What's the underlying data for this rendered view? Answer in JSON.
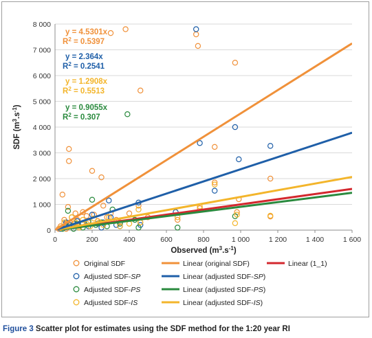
{
  "chart_data": {
    "type": "scatter",
    "xlabel": "Observed (m",
    "xlabel_sup": "3",
    "xlabel_mid": ".s",
    "xlabel_sup2": "-1",
    "xlabel_end": ")",
    "ylabel": "SDF (m",
    "ylabel_sup": "3",
    "ylabel_mid": ".s",
    "ylabel_sup2": "-1",
    "ylabel_end": ")",
    "xlim": [
      0,
      1600
    ],
    "ylim": [
      0,
      8000
    ],
    "x_ticks": [
      0,
      200,
      400,
      600,
      800,
      1000,
      1200,
      1400,
      1600
    ],
    "x_tick_labels": [
      "0",
      "200",
      "400",
      "600",
      "800",
      "1 000",
      "1 200",
      "1 400",
      "1 600"
    ],
    "y_ticks": [
      0,
      1000,
      2000,
      3000,
      4000,
      5000,
      6000,
      7000,
      8000
    ],
    "y_tick_labels": [
      "0",
      "1 000",
      "2 000",
      "3 000",
      "4 000",
      "5 000",
      "6 000",
      "7 000",
      "8 000"
    ],
    "grid": "horizontal",
    "series": [
      {
        "name": "Original SDF",
        "kind": "scatter",
        "color": "#f0913a",
        "points": [
          [
            20,
            50
          ],
          [
            30,
            150
          ],
          [
            40,
            1380
          ],
          [
            50,
            400
          ],
          [
            60,
            250
          ],
          [
            70,
            900
          ],
          [
            75,
            3150
          ],
          [
            75,
            2680
          ],
          [
            80,
            300
          ],
          [
            90,
            500
          ],
          [
            100,
            250
          ],
          [
            110,
            650
          ],
          [
            120,
            400
          ],
          [
            130,
            150
          ],
          [
            150,
            700
          ],
          [
            170,
            550
          ],
          [
            180,
            300
          ],
          [
            200,
            2300
          ],
          [
            210,
            600
          ],
          [
            230,
            350
          ],
          [
            250,
            2050
          ],
          [
            260,
            950
          ],
          [
            280,
            500
          ],
          [
            300,
            7650
          ],
          [
            300,
            650
          ],
          [
            330,
            400
          ],
          [
            350,
            300
          ],
          [
            380,
            7800
          ],
          [
            400,
            650
          ],
          [
            450,
            950
          ],
          [
            460,
            5420
          ],
          [
            460,
            300
          ],
          [
            500,
            500
          ],
          [
            660,
            400
          ],
          [
            760,
            7600
          ],
          [
            770,
            7150
          ],
          [
            780,
            850
          ],
          [
            860,
            3230
          ],
          [
            860,
            1850
          ],
          [
            970,
            6500
          ],
          [
            980,
            700
          ],
          [
            990,
            1200
          ],
          [
            1160,
            2000
          ],
          [
            1160,
            530
          ],
          [
            40,
            100
          ],
          [
            60,
            50
          ]
        ]
      },
      {
        "name": "Adjusted SDF-SP",
        "kind": "scatter",
        "color": "#1f5fa8",
        "points": [
          [
            30,
            50
          ],
          [
            60,
            300
          ],
          [
            80,
            200
          ],
          [
            100,
            150
          ],
          [
            150,
            250
          ],
          [
            180,
            150
          ],
          [
            200,
            600
          ],
          [
            230,
            250
          ],
          [
            260,
            300
          ],
          [
            290,
            1150
          ],
          [
            300,
            500
          ],
          [
            330,
            200
          ],
          [
            350,
            150
          ],
          [
            450,
            1070
          ],
          [
            460,
            200
          ],
          [
            650,
            700
          ],
          [
            760,
            7800
          ],
          [
            780,
            3380
          ],
          [
            860,
            1530
          ],
          [
            970,
            4000
          ],
          [
            990,
            2750
          ],
          [
            1160,
            3270
          ],
          [
            120,
            350
          ],
          [
            250,
            100
          ]
        ]
      },
      {
        "name": "Adjusted SDF-PS",
        "kind": "scatter",
        "color": "#2a8a3e",
        "points": [
          [
            40,
            50
          ],
          [
            70,
            750
          ],
          [
            90,
            150
          ],
          [
            120,
            250
          ],
          [
            150,
            100
          ],
          [
            180,
            350
          ],
          [
            200,
            1180
          ],
          [
            220,
            200
          ],
          [
            250,
            300
          ],
          [
            280,
            150
          ],
          [
            310,
            800
          ],
          [
            350,
            250
          ],
          [
            390,
            4500
          ],
          [
            430,
            400
          ],
          [
            450,
            100
          ],
          [
            660,
            100
          ],
          [
            970,
            540
          ],
          [
            100,
            50
          ],
          [
            60,
            150
          ]
        ]
      },
      {
        "name": "Adjusted SDF-IS",
        "kind": "scatter",
        "color": "#f3b52b",
        "points": [
          [
            30,
            80
          ],
          [
            50,
            300
          ],
          [
            70,
            200
          ],
          [
            90,
            500
          ],
          [
            110,
            300
          ],
          [
            130,
            100
          ],
          [
            150,
            400
          ],
          [
            170,
            250
          ],
          [
            190,
            150
          ],
          [
            210,
            450
          ],
          [
            240,
            300
          ],
          [
            260,
            200
          ],
          [
            290,
            500
          ],
          [
            320,
            350
          ],
          [
            350,
            150
          ],
          [
            400,
            250
          ],
          [
            450,
            800
          ],
          [
            460,
            300
          ],
          [
            660,
            500
          ],
          [
            780,
            920
          ],
          [
            860,
            1770
          ],
          [
            970,
            270
          ],
          [
            980,
            600
          ],
          [
            1160,
            560
          ]
        ]
      },
      {
        "name": "Linear (original SDF)",
        "kind": "line",
        "color": "#f0913a",
        "slope": 4.5301
      },
      {
        "name": "Linear (adjusted SDF-SP)",
        "kind": "line",
        "color": "#1f5fa8",
        "slope": 2.364
      },
      {
        "name": "Linear (adjusted SDF-PS)",
        "kind": "line",
        "color": "#2a8a3e",
        "slope": 0.9055
      },
      {
        "name": "Linear (adjusted SDF-IS)",
        "kind": "line",
        "color": "#f3b52b",
        "slope": 1.2908
      },
      {
        "name": "Linear (1_1)",
        "kind": "line",
        "color": "#d3282e",
        "slope": 1.0
      }
    ],
    "annotations": [
      {
        "eq": "y = 4.5301x",
        "r2_prefix": "R",
        "r2_sup": "2",
        "r2_value": " = 0.5397",
        "color": "#f0913a"
      },
      {
        "eq": "y = 2.364x",
        "r2_prefix": "R",
        "r2_sup": "2",
        "r2_value": " = 0.2541",
        "color": "#1f5fa8"
      },
      {
        "eq": "y = 1.2908x",
        "r2_prefix": "R",
        "r2_sup": "2",
        "r2_value": " = 0.5513",
        "color": "#f3b52b"
      },
      {
        "eq": "y = 0.9055x",
        "r2_prefix": "R",
        "r2_sup": "2",
        "r2_value": " = 0.307",
        "color": "#2a8a3e"
      }
    ],
    "legend": [
      {
        "label": "Original SDF",
        "label_italic": "",
        "marker": "circle",
        "color": "#f0913a"
      },
      {
        "label": "Linear (original SDF)",
        "label_italic": "",
        "marker": "line",
        "color": "#f0913a"
      },
      {
        "label": "Linear (1_1)",
        "label_italic": "",
        "marker": "line",
        "color": "#d3282e"
      },
      {
        "label": "Adjusted SDF-",
        "label_italic": "SP",
        "marker": "circle",
        "color": "#1f5fa8"
      },
      {
        "label": "Linear (adjusted SDF-",
        "label_italic": "SP",
        "label_end": ")",
        "marker": "line",
        "color": "#1f5fa8"
      },
      {
        "label": "Adjusted SDF-",
        "label_italic": "PS",
        "marker": "circle",
        "color": "#2a8a3e"
      },
      {
        "label": "Linear (adjusted SDF-",
        "label_italic": "PS",
        "label_end": ")",
        "marker": "line",
        "color": "#2a8a3e"
      },
      {
        "label": "Adjusted SDF-",
        "label_italic": "IS",
        "marker": "circle",
        "color": "#f3b52b"
      },
      {
        "label": "Linear (adjusted SDF-",
        "label_italic": "IS",
        "label_end": ")",
        "marker": "line",
        "color": "#f3b52b"
      }
    ]
  },
  "caption": {
    "label": "Figure 3",
    "text": " Scatter plot for estimates using the SDF method for the 1:20 year RI"
  }
}
